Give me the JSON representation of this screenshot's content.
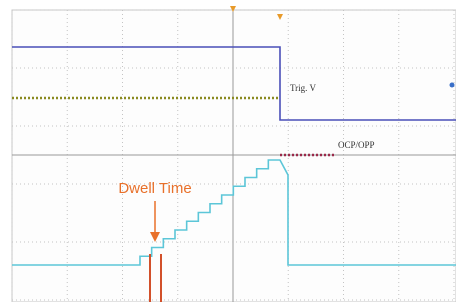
{
  "annotations": {
    "trig_level": "Trig. V",
    "ocp_level": "OCP/OPP",
    "dwell": "Dwell Time"
  }
}
